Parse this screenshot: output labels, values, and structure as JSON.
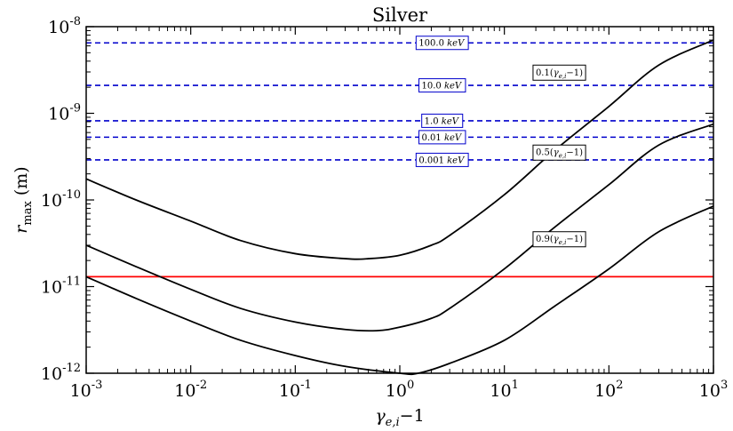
{
  "chart_data": {
    "type": "line",
    "title": "Silver",
    "xlabel": "γ_e,i − 1",
    "xlabel_parts": {
      "main": "γ",
      "sub": "e,i",
      "suffix": "−1"
    },
    "ylabel": "r_max (m)",
    "ylabel_parts": {
      "main": "r",
      "sub": "max",
      "suffix": " (m)"
    },
    "x_scale": "log",
    "y_scale": "log",
    "xlim": [
      0.001,
      1000
    ],
    "ylim": [
      1e-12,
      1e-08
    ],
    "grid": false,
    "x_ticks": [
      {
        "value": 0.001,
        "base": "10",
        "exp": "-3"
      },
      {
        "value": 0.01,
        "base": "10",
        "exp": "-2"
      },
      {
        "value": 0.1,
        "base": "10",
        "exp": "-1"
      },
      {
        "value": 1,
        "base": "10",
        "exp": "0"
      },
      {
        "value": 10,
        "base": "10",
        "exp": "1"
      },
      {
        "value": 100,
        "base": "10",
        "exp": "2"
      },
      {
        "value": 1000,
        "base": "10",
        "exp": "3"
      }
    ],
    "y_ticks": [
      {
        "value": 1e-12,
        "base": "10",
        "exp": "-12"
      },
      {
        "value": 1e-11,
        "base": "10",
        "exp": "-11"
      },
      {
        "value": 1e-10,
        "base": "10",
        "exp": "-10"
      },
      {
        "value": 1e-09,
        "base": "10",
        "exp": "-9"
      },
      {
        "value": 1e-08,
        "base": "10",
        "exp": "-8"
      }
    ],
    "horizontal_lines": [
      {
        "label": "100.0 keV",
        "num": "100.0",
        "unit": "keV",
        "y": 6.5e-09,
        "color": "#0000cc",
        "style": "dashed"
      },
      {
        "label": "10.0 keV",
        "num": "10.0",
        "unit": "keV",
        "y": 2.1e-09,
        "color": "#0000cc",
        "style": "dashed"
      },
      {
        "label": "1.0 keV",
        "num": "1.0",
        "unit": "keV",
        "y": 8.2e-10,
        "color": "#0000cc",
        "style": "dashed"
      },
      {
        "label": "0.01 keV",
        "num": "0.01",
        "unit": "keV",
        "y": 5.3e-10,
        "color": "#0000cc",
        "style": "dashed"
      },
      {
        "label": "0.001 keV",
        "num": "0.001",
        "unit": "keV",
        "y": 2.9e-10,
        "color": "#0000cc",
        "style": "dashed"
      }
    ],
    "reference_line": {
      "y": 1.3e-11,
      "color": "#ff0000",
      "style": "solid"
    },
    "series": [
      {
        "label": "0.1(γ_e,i−1)",
        "label_parts": {
          "pre": "0.1(",
          "main": "γ",
          "sub": "e,i",
          "post": "−1)"
        },
        "label_x": 300,
        "color": "#000000",
        "x": [
          0.001,
          0.003,
          0.01,
          0.03,
          0.1,
          0.3,
          0.5,
          1,
          2,
          3,
          10,
          30,
          100,
          300,
          1000
        ],
        "y": [
          1.75e-10,
          1e-10,
          5.7e-11,
          3.4e-11,
          2.4e-11,
          2.1e-11,
          2.1e-11,
          2.3e-11,
          3e-11,
          3.9e-11,
          1.15e-10,
          3.7e-10,
          1.2e-09,
          3.6e-09,
          7e-09
        ]
      },
      {
        "label": "0.5(γ_e,i−1)",
        "label_parts": {
          "pre": "0.5(",
          "main": "γ",
          "sub": "e,i",
          "post": "−1)"
        },
        "label_x": 300,
        "color": "#000000",
        "x": [
          0.001,
          0.003,
          0.01,
          0.03,
          0.1,
          0.3,
          0.6,
          1,
          2,
          3,
          10,
          30,
          100,
          300,
          1000
        ],
        "y": [
          3e-11,
          1.7e-11,
          9.3e-12,
          5.6e-12,
          3.9e-12,
          3.2e-12,
          3.1e-12,
          3.4e-12,
          4.3e-12,
          5.6e-12,
          1.6e-11,
          4.8e-11,
          1.5e-10,
          4.3e-10,
          7.5e-10
        ]
      },
      {
        "label": "0.9(γ_e,i−1)",
        "label_parts": {
          "pre": "0.9(",
          "main": "γ",
          "sub": "e,i",
          "post": "−1)"
        },
        "label_x": 300,
        "color": "#000000",
        "x": [
          0.001,
          0.003,
          0.01,
          0.03,
          0.1,
          0.3,
          1,
          1.5,
          3,
          10,
          30,
          100,
          300,
          1000
        ],
        "y": [
          1.3e-11,
          7.3e-12,
          4e-12,
          2.4e-12,
          1.6e-12,
          1.2e-12,
          1e-12,
          1e-12,
          1.3e-12,
          2.4e-12,
          5.9e-12,
          1.6e-11,
          4.3e-11,
          8.5e-11
        ]
      }
    ]
  }
}
